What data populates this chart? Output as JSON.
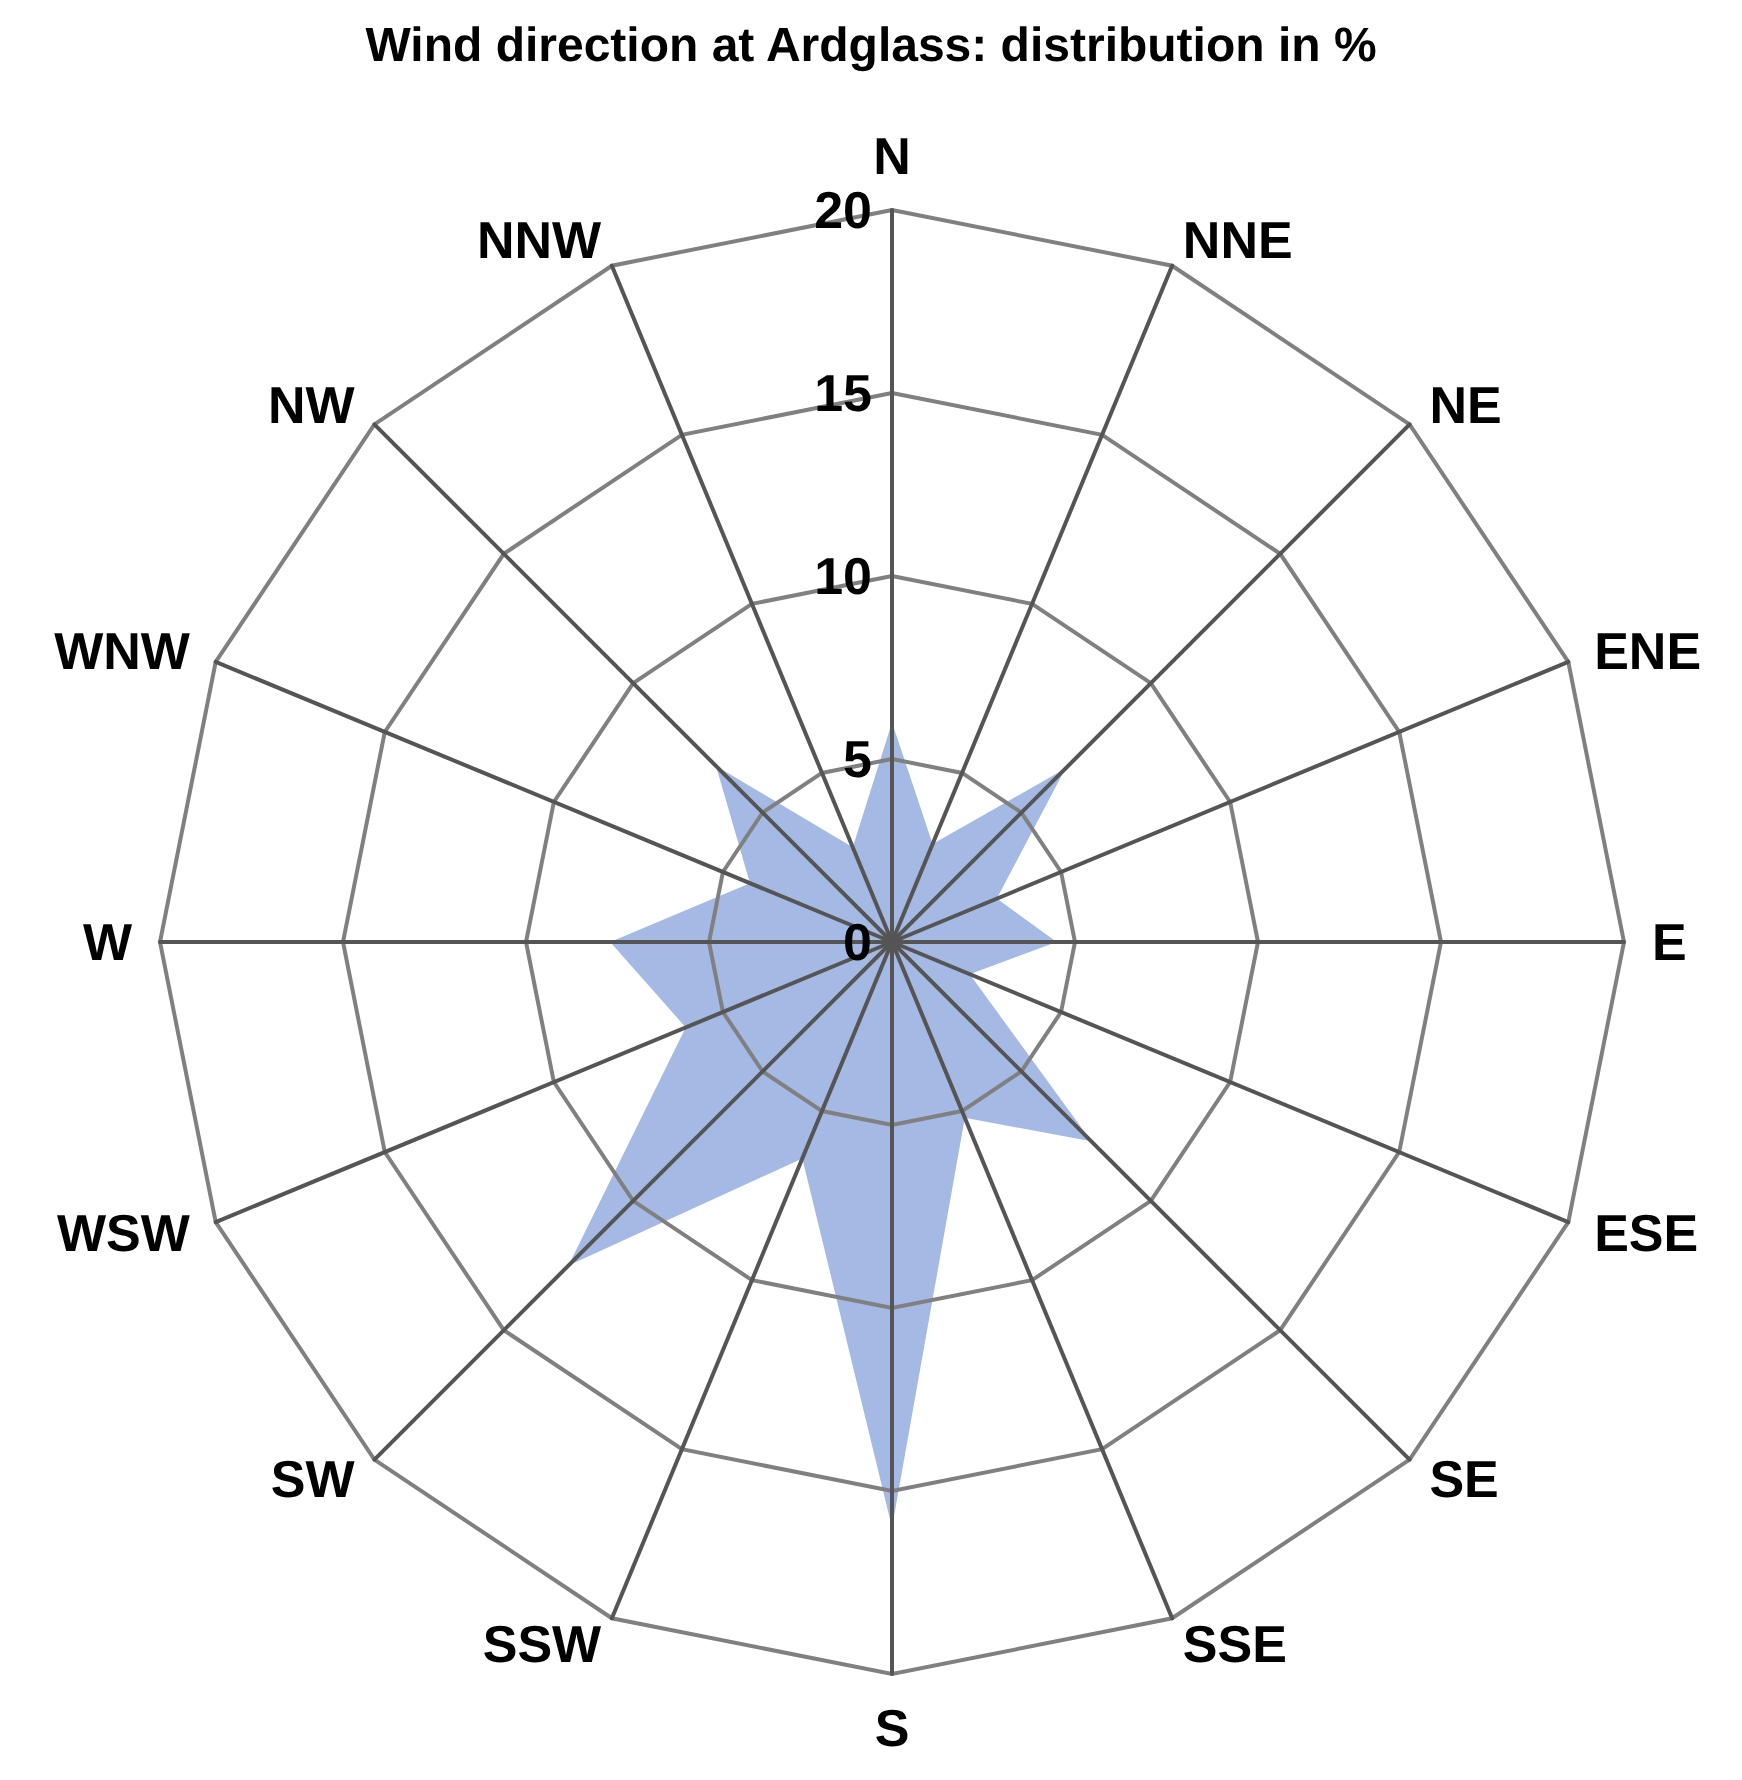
{
  "chart_data": {
    "type": "radar",
    "title": "Wind direction at Ardglass: distribution in %",
    "categories": [
      "N",
      "NNE",
      "NE",
      "ENE",
      "E",
      "ESE",
      "SE",
      "SSE",
      "S",
      "SSW",
      "SW",
      "WSW",
      "W",
      "WNW",
      "NW",
      "NNW"
    ],
    "series": [
      {
        "color": "#a4b9e3",
        "values": [
          6,
          2.9,
          6.7,
          3.1,
          4.5,
          2.3,
          7.7,
          5.2,
          16,
          6.4,
          12.5,
          6.1,
          7.7,
          4.2,
          6.8,
          2.8
        ]
      }
    ],
    "ylim": [
      0,
      20
    ],
    "yticks": [
      0,
      5,
      10,
      15,
      20
    ],
    "marker": "none"
  }
}
